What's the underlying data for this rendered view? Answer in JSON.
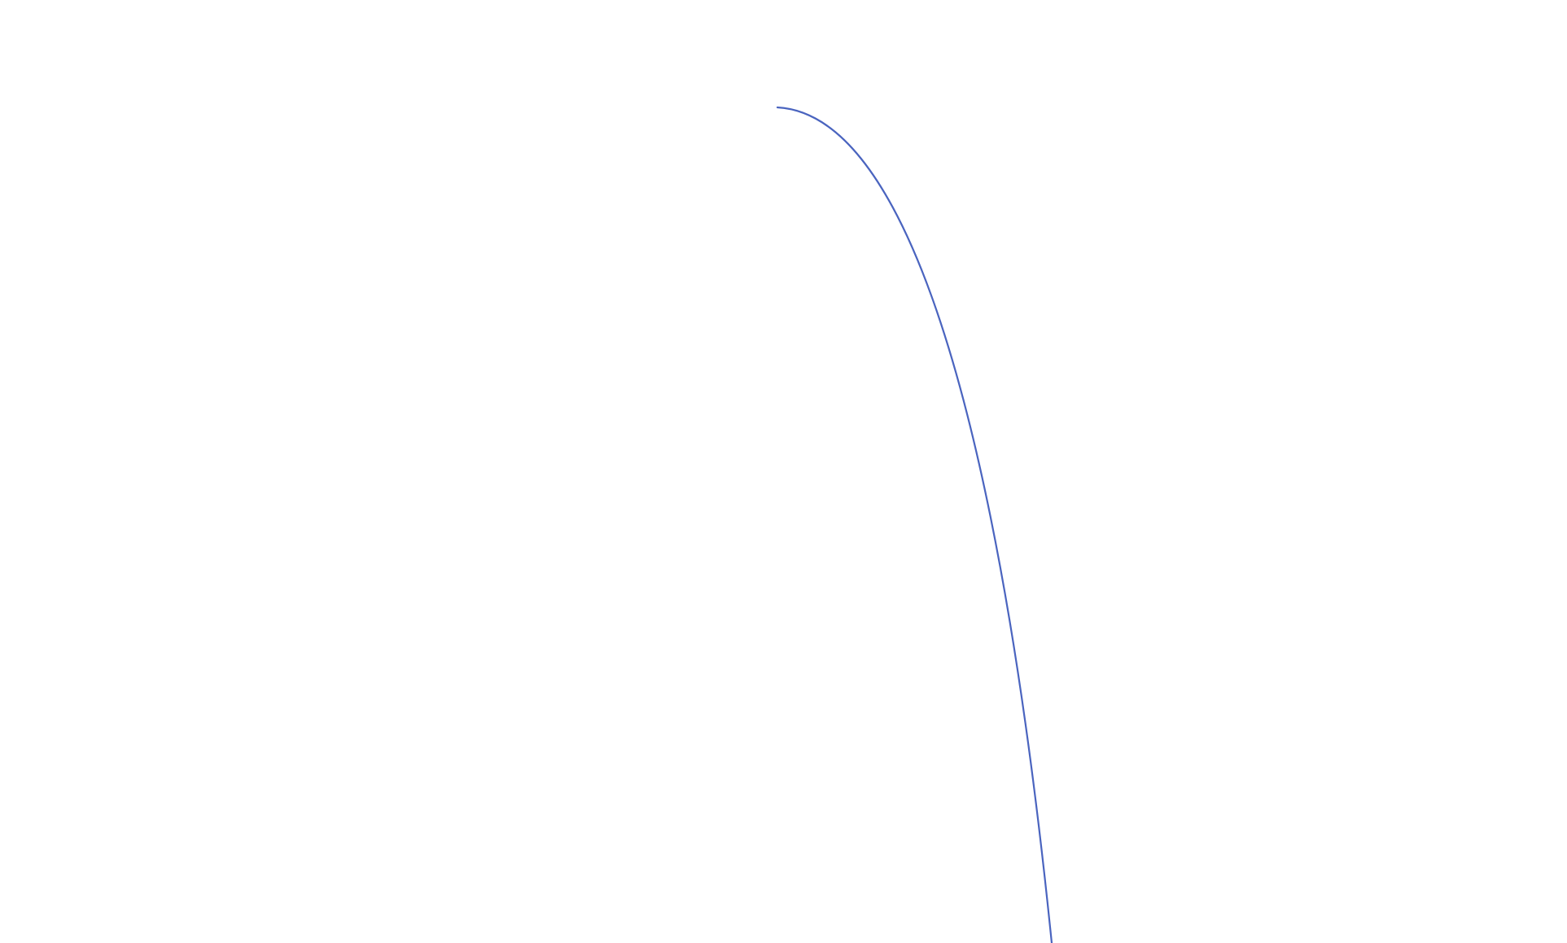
{
  "canvas": {
    "background": "#ffffff"
  },
  "curve": {
    "color": "#4a64bf"
  }
}
